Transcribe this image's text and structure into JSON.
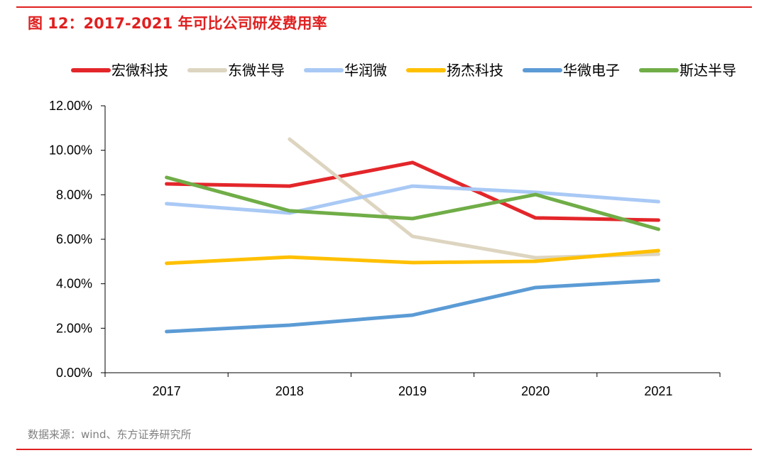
{
  "title": "图 12：2017-2021 年可比公司研发费用率",
  "source": "数据来源：wind、东方证券研究所",
  "chart_data": {
    "type": "line",
    "title": "图 12：2017-2021 年可比公司研发费用率",
    "categories": [
      "2017",
      "2018",
      "2019",
      "2020",
      "2021"
    ],
    "ylim": [
      0,
      12
    ],
    "yticks": [
      "0.00%",
      "2.00%",
      "4.00%",
      "6.00%",
      "8.00%",
      "10.00%",
      "12.00%"
    ],
    "grid": false,
    "legend_position": "top",
    "series": [
      {
        "name": "宏微科技",
        "color": "#e3262a",
        "values": [
          8.49,
          8.39,
          9.45,
          6.96,
          6.86
        ]
      },
      {
        "name": "东微半导",
        "color": "#ddd5c0",
        "values": [
          null,
          10.5,
          6.13,
          5.17,
          5.33
        ]
      },
      {
        "name": "华润微",
        "color": "#a9c9f5",
        "values": [
          7.6,
          7.18,
          8.39,
          8.11,
          7.69
        ]
      },
      {
        "name": "扬杰科技",
        "color": "#ffc000",
        "values": [
          4.92,
          5.2,
          4.95,
          5.01,
          5.49
        ]
      },
      {
        "name": "华微电子",
        "color": "#5b9bd5",
        "values": [
          1.85,
          2.14,
          2.59,
          3.83,
          4.15
        ]
      },
      {
        "name": "斯达半导",
        "color": "#70ad47",
        "values": [
          8.78,
          7.28,
          6.93,
          8.01,
          6.45
        ]
      }
    ]
  }
}
